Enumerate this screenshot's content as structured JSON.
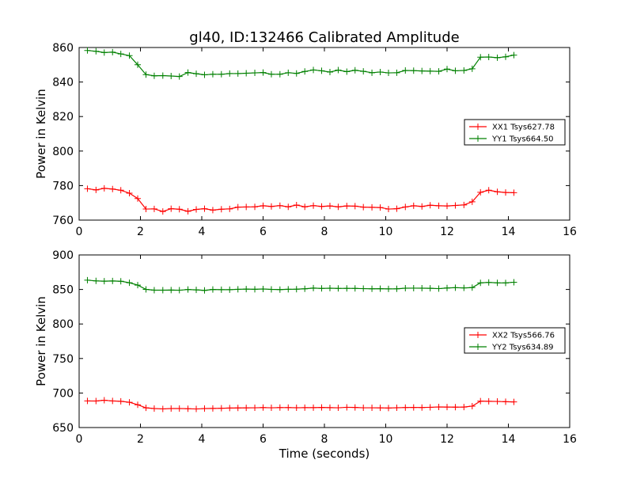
{
  "figure": {
    "title": "gl40, ID:132466 Calibrated Amplitude",
    "xlabel": "Time (seconds)"
  },
  "chart_data": [
    {
      "type": "line",
      "ylabel": "Power in Kelvin",
      "xlim": [
        0,
        16
      ],
      "ylim": [
        760,
        860
      ],
      "x_ticks": [
        0,
        2,
        4,
        6,
        8,
        10,
        12,
        14,
        16
      ],
      "y_ticks": [
        760,
        780,
        800,
        820,
        840,
        860
      ],
      "grid": false,
      "legend_position": "right",
      "x": [
        0.27,
        0.55,
        0.82,
        1.09,
        1.36,
        1.64,
        1.91,
        2.18,
        2.45,
        2.73,
        3.0,
        3.27,
        3.55,
        3.82,
        4.09,
        4.36,
        4.64,
        4.91,
        5.18,
        5.45,
        5.73,
        6.0,
        6.27,
        6.55,
        6.82,
        7.09,
        7.36,
        7.64,
        7.91,
        8.18,
        8.45,
        8.73,
        9.0,
        9.27,
        9.55,
        9.82,
        10.09,
        10.36,
        10.64,
        10.91,
        11.18,
        11.45,
        11.73,
        12.0,
        12.27,
        12.55,
        12.82,
        13.09,
        13.36,
        13.64,
        13.91,
        14.18
      ],
      "series": [
        {
          "name": "XX1 Tsys627.78",
          "color": "#ff0000",
          "values": [
            778.2,
            777.5,
            778.4,
            778.0,
            777.3,
            775.6,
            772.5,
            766.4,
            766.5,
            765.0,
            766.6,
            766.3,
            765.1,
            766.2,
            766.6,
            765.8,
            766.3,
            766.5,
            767.5,
            767.6,
            767.7,
            768.3,
            767.9,
            768.4,
            767.7,
            768.7,
            767.7,
            768.4,
            767.9,
            768.2,
            767.7,
            768.2,
            768.1,
            767.5,
            767.4,
            767.3,
            766.4,
            766.6,
            767.6,
            768.3,
            767.9,
            768.6,
            768.3,
            768.2,
            768.5,
            768.8,
            770.6,
            776.1,
            777.3,
            776.4,
            776.0,
            775.9
          ]
        },
        {
          "name": "YY1 Tsys664.50",
          "color": "#008000",
          "values": [
            858.3,
            857.8,
            857.1,
            857.3,
            856.3,
            855.3,
            850.0,
            844.3,
            843.6,
            843.7,
            843.5,
            843.2,
            845.5,
            844.8,
            844.2,
            844.5,
            844.5,
            844.9,
            844.9,
            845.1,
            845.3,
            845.5,
            844.5,
            844.5,
            845.4,
            845.0,
            846.1,
            847.0,
            846.5,
            845.8,
            846.9,
            846.0,
            846.8,
            846.2,
            845.4,
            845.8,
            845.3,
            845.4,
            846.7,
            846.6,
            846.4,
            846.3,
            846.2,
            847.5,
            846.5,
            846.7,
            847.7,
            854.4,
            854.5,
            854.1,
            854.6,
            855.6
          ]
        }
      ]
    },
    {
      "type": "line",
      "ylabel": "Power in Kelvin",
      "xlim": [
        0,
        16
      ],
      "ylim": [
        650,
        900
      ],
      "x_ticks": [
        0,
        2,
        4,
        6,
        8,
        10,
        12,
        14,
        16
      ],
      "y_ticks": [
        650,
        700,
        750,
        800,
        850,
        900
      ],
      "grid": false,
      "legend_position": "right",
      "x": [
        0.27,
        0.55,
        0.82,
        1.09,
        1.36,
        1.64,
        1.91,
        2.18,
        2.45,
        2.73,
        3.0,
        3.27,
        3.55,
        3.82,
        4.09,
        4.36,
        4.64,
        4.91,
        5.18,
        5.45,
        5.73,
        6.0,
        6.27,
        6.55,
        6.82,
        7.09,
        7.36,
        7.64,
        7.91,
        8.18,
        8.45,
        8.73,
        9.0,
        9.27,
        9.55,
        9.82,
        10.09,
        10.36,
        10.64,
        10.91,
        11.18,
        11.45,
        11.73,
        12.0,
        12.27,
        12.55,
        12.82,
        13.09,
        13.36,
        13.64,
        13.91,
        14.18
      ],
      "series": [
        {
          "name": "XX2 Tsys566.76",
          "color": "#ff0000",
          "values": [
            688.5,
            688.4,
            689.5,
            688.5,
            688.0,
            686.6,
            683.0,
            678.5,
            677.5,
            677.0,
            677.5,
            677.5,
            677.3,
            676.9,
            677.5,
            677.7,
            677.9,
            678.2,
            678.4,
            678.5,
            678.6,
            678.9,
            678.6,
            678.9,
            678.9,
            678.7,
            678.8,
            678.8,
            679.1,
            678.8,
            678.6,
            679.3,
            679.1,
            678.6,
            678.6,
            678.5,
            678.3,
            678.7,
            679.0,
            679.1,
            679.0,
            679.3,
            679.8,
            679.7,
            679.5,
            679.7,
            681.0,
            688.3,
            688.0,
            687.8,
            687.4,
            687.1
          ]
        },
        {
          "name": "YY2 Tsys634.89",
          "color": "#008000",
          "values": [
            863.5,
            862.4,
            862.0,
            862.3,
            861.9,
            859.7,
            856.3,
            850.1,
            849.0,
            849.0,
            849.1,
            848.9,
            849.9,
            849.4,
            848.7,
            850.0,
            849.7,
            849.7,
            850.2,
            850.5,
            850.3,
            850.7,
            850.1,
            849.8,
            850.3,
            850.4,
            851.0,
            852.0,
            851.5,
            851.8,
            851.5,
            851.6,
            851.5,
            851.2,
            851.0,
            851.1,
            850.8,
            851.0,
            851.8,
            851.9,
            851.8,
            851.7,
            851.2,
            852.1,
            852.6,
            852.2,
            852.7,
            859.6,
            860.2,
            859.6,
            859.5,
            860.5
          ]
        }
      ]
    }
  ]
}
